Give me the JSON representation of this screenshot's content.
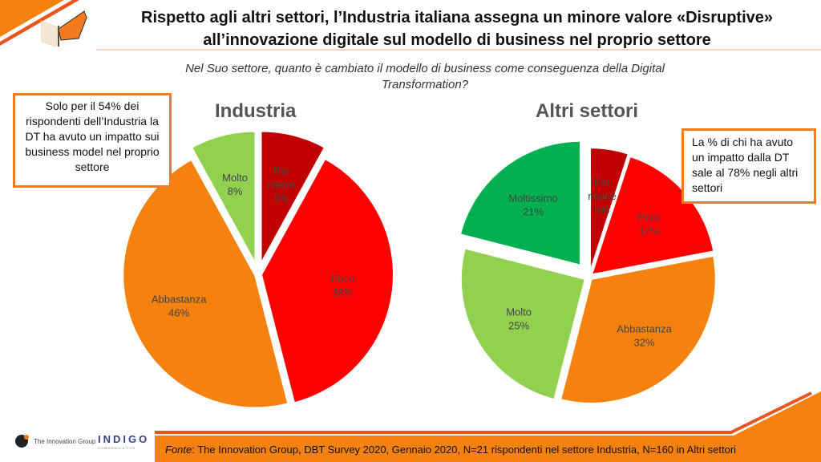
{
  "title": "Rispetto agli altri settori, l’Industria italiana assegna un minore valore «Disruptive» all’innovazione digitale sul modello di business nel proprio settore",
  "question": "Nel Suo settore, quanto è cambiato il modello di business come conseguenza della Digital Transformation?",
  "callout_left": "Solo per il 54% dei rispondenti dell’Industria la DT ha avuto un impatto sui business model nel proprio settore",
  "callout_right": "La % di chi ha avuto un impatto dalla DT sale al 78% negli altri settori",
  "fonte_label": "Fonte",
  "fonte_text": ": The Innovation Group, DBT Survey 2020, Gennaio 2020, N=21 rispondenti nel settore Industria, N=160 in Altri settori",
  "logos": {
    "tig": "The Innovation Group",
    "indigo": "INDIGO",
    "indigo_sub": "COMMUNICATION"
  },
  "colors": {
    "Per niente": "#c00000",
    "Poco": "#ff0000",
    "Abbastanza": "#f5820f",
    "Molto": "#92d050",
    "Moltissimo": "#00b050",
    "accent": "#f47b20"
  },
  "chart_data": [
    {
      "type": "pie",
      "title": "Industria",
      "slices": [
        {
          "label": "Per niente",
          "value": 8
        },
        {
          "label": "Poco",
          "value": 38
        },
        {
          "label": "Abbastanza",
          "value": 46
        },
        {
          "label": "Molto",
          "value": 8
        }
      ]
    },
    {
      "type": "pie",
      "title": "Altri settori",
      "slices": [
        {
          "label": "Per niente",
          "value": 5
        },
        {
          "label": "Poco",
          "value": 17
        },
        {
          "label": "Abbastanza",
          "value": 32
        },
        {
          "label": "Molto",
          "value": 25
        },
        {
          "label": "Moltissimo",
          "value": 21
        }
      ]
    }
  ]
}
